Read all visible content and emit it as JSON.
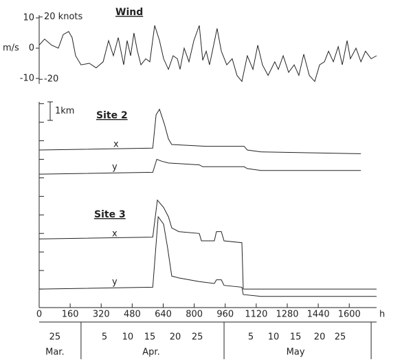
{
  "chart_data": [
    {
      "type": "line",
      "title": "Wind",
      "ylabel": "m/s",
      "xlim": [
        0,
        1741
      ],
      "ylim": [
        -11,
        12
      ],
      "yticks": [
        10,
        0,
        -10
      ],
      "y2lim": [
        -21.4,
        23.3
      ],
      "y2ticks": [
        {
          "value": 20,
          "label": "20 knots"
        },
        -20
      ],
      "color": "#222",
      "x": [
        0,
        28,
        64,
        99,
        124,
        152,
        170,
        188,
        216,
        259,
        294,
        330,
        358,
        383,
        408,
        436,
        454,
        472,
        489,
        507,
        525,
        550,
        571,
        596,
        621,
        642,
        667,
        691,
        713,
        727,
        748,
        773,
        798,
        826,
        844,
        862,
        879,
        897,
        918,
        940,
        968,
        996,
        1021,
        1046,
        1074,
        1103,
        1128,
        1152,
        1181,
        1216,
        1234,
        1259,
        1287,
        1316,
        1340,
        1365,
        1394,
        1422,
        1447,
        1472,
        1493,
        1518,
        1543,
        1564,
        1589,
        1606,
        1635,
        1660,
        1684,
        1713,
        1741
      ],
      "values": [
        1,
        3,
        1,
        0,
        4.5,
        5.5,
        3.5,
        -2.5,
        -5.5,
        -5,
        -6.5,
        -4.5,
        2.5,
        -2.5,
        3.5,
        -5.5,
        2.5,
        -2.5,
        5,
        -1,
        -5.5,
        -3.5,
        -4.5,
        7.5,
        2.5,
        -3.5,
        -7,
        -2.5,
        -3.5,
        -7,
        0,
        -4.5,
        2.5,
        7.5,
        -4,
        -1,
        -5.5,
        0,
        6.5,
        -1,
        -5.5,
        -3.5,
        -9,
        -11,
        -2.5,
        -7,
        1,
        -5.5,
        -9,
        -4.5,
        -7,
        -2.5,
        -8,
        -5.5,
        -9,
        -2,
        -9,
        -11,
        -5.5,
        -4.5,
        -1,
        -4.5,
        0.5,
        -5.5,
        2.5,
        -3.5,
        0,
        -4.5,
        -1,
        -3.5,
        -2.5
      ]
    },
    {
      "type": "line",
      "xlim": [
        0,
        1741
      ],
      "xticks": [
        0,
        160,
        320,
        480,
        640,
        800,
        960,
        1120,
        1280,
        1440,
        1600
      ],
      "xlabel": "h",
      "ylim": [
        0,
        11.1
      ],
      "tick_marks": [
        0,
        1,
        2,
        3,
        4,
        5,
        6,
        7,
        8,
        9,
        10,
        11
      ],
      "scale_bar": {
        "value": 1,
        "label": "1km"
      },
      "color": "#222",
      "panels": [
        {
          "title": "Site 2",
          "series": [
            {
              "name": "x",
              "x": [
                0,
                586,
                603,
                621,
                646,
                667,
                684,
                862,
                1057,
                1074,
                1145,
                1660
              ],
              "values": [
                8.5,
                8.6,
                10.4,
                10.7,
                9.9,
                9.1,
                8.8,
                8.7,
                8.7,
                8.5,
                8.4,
                8.3
              ]
            },
            {
              "name": "y",
              "x": [
                0,
                586,
                607,
                631,
                667,
                826,
                844,
                1057,
                1074,
                1145,
                1660
              ],
              "values": [
                7.2,
                7.3,
                8.0,
                7.9,
                7.8,
                7.7,
                7.6,
                7.6,
                7.5,
                7.4,
                7.4
              ]
            }
          ]
        },
        {
          "title": "Site 3",
          "series": [
            {
              "name": "x",
              "x": [
                0,
                586,
                610,
                642,
                667,
                684,
                720,
                826,
                837,
                904,
                915,
                940,
                954,
                1046,
                1053,
                1145,
                1741
              ],
              "values": [
                3.7,
                3.8,
                5.8,
                5.4,
                4.9,
                4.3,
                4.1,
                4.0,
                3.6,
                3.6,
                4.1,
                4.1,
                3.6,
                3.5,
                1.0,
                1.0,
                1.0
              ]
            },
            {
              "name": "y",
              "x": [
                0,
                586,
                614,
                642,
                663,
                684,
                720,
                826,
                904,
                915,
                940,
                954,
                1046,
                1053,
                1145,
                1741
              ],
              "values": [
                1.0,
                1.1,
                4.9,
                4.5,
                3.2,
                1.7,
                1.6,
                1.4,
                1.3,
                1.5,
                1.5,
                1.2,
                1.1,
                0.7,
                0.6,
                0.6
              ]
            }
          ]
        }
      ],
      "date_ticks": [
        {
          "value": 81,
          "label": "25"
        },
        {
          "value": 337,
          "label": "5"
        },
        {
          "value": 457,
          "label": "10"
        },
        {
          "value": 571,
          "label": "15"
        },
        {
          "value": 702,
          "label": "20"
        },
        {
          "value": 816,
          "label": "25"
        },
        {
          "value": 1092,
          "label": "5"
        },
        {
          "value": 1209,
          "label": "10"
        },
        {
          "value": 1323,
          "label": "15"
        },
        {
          "value": 1447,
          "label": "20"
        },
        {
          "value": 1553,
          "label": "25"
        }
      ],
      "months": [
        {
          "value": 81,
          "label": "Mar."
        },
        {
          "value": 578,
          "label": "Apr."
        },
        {
          "value": 1323,
          "label": "May"
        }
      ],
      "month_bounds": [
        216,
        954,
        1713
      ]
    }
  ]
}
